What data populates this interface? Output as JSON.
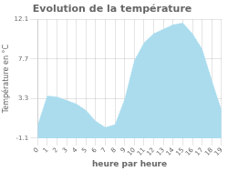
{
  "chart_data": {
    "type": "area",
    "title": "Evolution de la température",
    "xlabel": "heure par heure",
    "ylabel": "Température en °C",
    "x": [
      0,
      1,
      2,
      3,
      4,
      5,
      6,
      7,
      8,
      9,
      10,
      11,
      12,
      13,
      14,
      15,
      16,
      17,
      18,
      19
    ],
    "values": [
      0.3,
      3.6,
      3.5,
      3.1,
      2.7,
      2.0,
      0.8,
      0.1,
      0.4,
      3.2,
      7.5,
      9.5,
      10.5,
      11.0,
      11.5,
      11.7,
      10.5,
      8.8,
      5.3,
      2.0
    ],
    "xlim": [
      0,
      19
    ],
    "ylim": [
      -1.1,
      12.1
    ],
    "xticks": [
      0,
      1,
      2,
      3,
      4,
      5,
      6,
      7,
      8,
      9,
      10,
      11,
      12,
      13,
      14,
      15,
      16,
      17,
      18,
      19
    ],
    "yticks": [
      -1.1,
      3.3,
      7.7,
      12.1
    ],
    "color": "#aadcee",
    "line_style": "dotted",
    "grid": true
  }
}
